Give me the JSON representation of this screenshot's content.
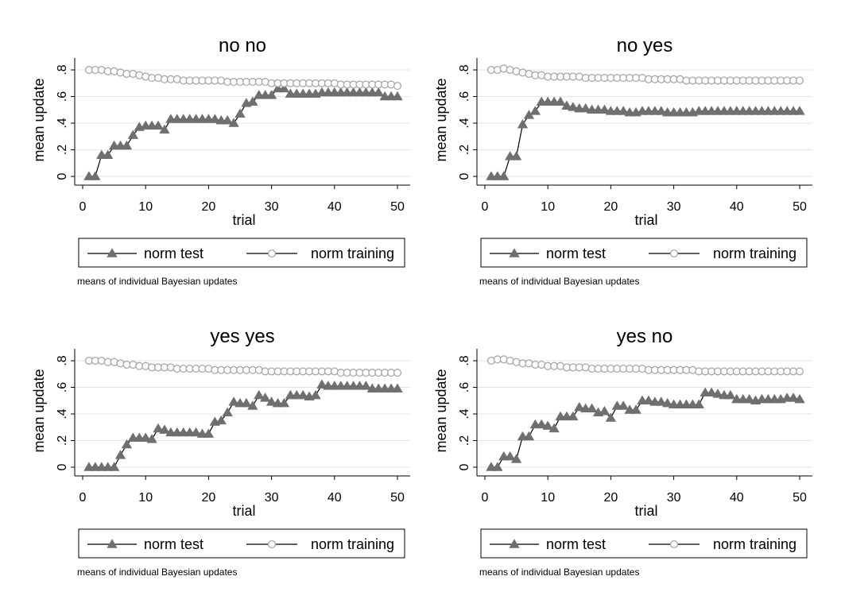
{
  "figure_note_text": "means of individual Bayesian updates",
  "colors": {
    "test_series": "#6f6f6f",
    "training_series": "#a6a6a6",
    "connect_line": "#000000",
    "grid": "#e4e4e4",
    "frame": "#000000"
  },
  "chart_data": [
    {
      "type": "line",
      "title": "no no",
      "xlabel": "trial",
      "ylabel": "mean update",
      "xlim": [
        0,
        50
      ],
      "ylim": [
        0,
        0.8
      ],
      "xticks": [
        0,
        10,
        20,
        30,
        40,
        50
      ],
      "yticks": [
        0,
        0.2,
        0.4,
        0.6,
        0.8
      ],
      "xtick_labels": [
        "0",
        "10",
        "20",
        "30",
        "40",
        "50"
      ],
      "ytick_labels": [
        "0",
        ".2",
        ".4",
        ".6",
        ".8"
      ],
      "grid": true,
      "legend_position": "bottom",
      "note": "means of individual Bayesian updates",
      "x": [
        1,
        2,
        3,
        4,
        5,
        6,
        7,
        8,
        9,
        10,
        11,
        12,
        13,
        14,
        15,
        16,
        17,
        18,
        19,
        20,
        21,
        22,
        23,
        24,
        25,
        26,
        27,
        28,
        29,
        30,
        31,
        32,
        33,
        34,
        35,
        36,
        37,
        38,
        39,
        40,
        41,
        42,
        43,
        44,
        45,
        46,
        47,
        48,
        49,
        50
      ],
      "series": [
        {
          "name": "norm test",
          "marker": "triangle",
          "values": [
            0,
            0,
            0.16,
            0.16,
            0.23,
            0.23,
            0.23,
            0.31,
            0.37,
            0.38,
            0.38,
            0.38,
            0.35,
            0.43,
            0.43,
            0.43,
            0.43,
            0.43,
            0.43,
            0.43,
            0.43,
            0.42,
            0.42,
            0.4,
            0.47,
            0.55,
            0.56,
            0.61,
            0.61,
            0.61,
            0.66,
            0.66,
            0.62,
            0.62,
            0.62,
            0.62,
            0.62,
            0.63,
            0.63,
            0.63,
            0.63,
            0.63,
            0.63,
            0.63,
            0.63,
            0.63,
            0.63,
            0.6,
            0.6,
            0.6
          ]
        },
        {
          "name": "norm training",
          "marker": "circle",
          "values": [
            0.8,
            0.8,
            0.8,
            0.79,
            0.79,
            0.78,
            0.77,
            0.77,
            0.76,
            0.75,
            0.74,
            0.74,
            0.73,
            0.73,
            0.73,
            0.72,
            0.72,
            0.72,
            0.72,
            0.72,
            0.72,
            0.72,
            0.71,
            0.71,
            0.71,
            0.71,
            0.71,
            0.71,
            0.71,
            0.7,
            0.7,
            0.7,
            0.7,
            0.7,
            0.7,
            0.7,
            0.7,
            0.7,
            0.7,
            0.7,
            0.69,
            0.69,
            0.69,
            0.69,
            0.69,
            0.69,
            0.69,
            0.69,
            0.69,
            0.68
          ]
        }
      ]
    },
    {
      "type": "line",
      "title": "no yes",
      "xlabel": "trial",
      "ylabel": "mean update",
      "xlim": [
        0,
        50
      ],
      "ylim": [
        0,
        0.8
      ],
      "xticks": [
        0,
        10,
        20,
        30,
        40,
        50
      ],
      "yticks": [
        0,
        0.2,
        0.4,
        0.6,
        0.8
      ],
      "xtick_labels": [
        "0",
        "10",
        "20",
        "30",
        "40",
        "50"
      ],
      "ytick_labels": [
        "0",
        ".2",
        ".4",
        ".6",
        ".8"
      ],
      "grid": true,
      "legend_position": "bottom",
      "note": "means of individual Bayesian updates",
      "x": [
        1,
        2,
        3,
        4,
        5,
        6,
        7,
        8,
        9,
        10,
        11,
        12,
        13,
        14,
        15,
        16,
        17,
        18,
        19,
        20,
        21,
        22,
        23,
        24,
        25,
        26,
        27,
        28,
        29,
        30,
        31,
        32,
        33,
        34,
        35,
        36,
        37,
        38,
        39,
        40,
        41,
        42,
        43,
        44,
        45,
        46,
        47,
        48,
        49,
        50
      ],
      "series": [
        {
          "name": "norm test",
          "marker": "triangle",
          "values": [
            0,
            0,
            0,
            0.15,
            0.15,
            0.39,
            0.46,
            0.49,
            0.56,
            0.56,
            0.56,
            0.56,
            0.53,
            0.52,
            0.51,
            0.51,
            0.5,
            0.5,
            0.5,
            0.49,
            0.49,
            0.49,
            0.48,
            0.48,
            0.49,
            0.49,
            0.49,
            0.49,
            0.48,
            0.48,
            0.48,
            0.48,
            0.48,
            0.49,
            0.49,
            0.49,
            0.49,
            0.49,
            0.49,
            0.49,
            0.49,
            0.49,
            0.49,
            0.49,
            0.49,
            0.49,
            0.49,
            0.49,
            0.49,
            0.49
          ]
        },
        {
          "name": "norm training",
          "marker": "circle",
          "values": [
            0.8,
            0.8,
            0.81,
            0.8,
            0.79,
            0.78,
            0.77,
            0.76,
            0.76,
            0.75,
            0.75,
            0.75,
            0.75,
            0.75,
            0.75,
            0.74,
            0.74,
            0.74,
            0.74,
            0.74,
            0.74,
            0.74,
            0.74,
            0.74,
            0.74,
            0.73,
            0.73,
            0.73,
            0.73,
            0.73,
            0.73,
            0.72,
            0.72,
            0.72,
            0.72,
            0.72,
            0.72,
            0.72,
            0.72,
            0.72,
            0.72,
            0.72,
            0.72,
            0.72,
            0.72,
            0.72,
            0.72,
            0.72,
            0.72,
            0.72
          ]
        }
      ]
    },
    {
      "type": "line",
      "title": "yes yes",
      "xlabel": "trial",
      "ylabel": "mean update",
      "xlim": [
        0,
        50
      ],
      "ylim": [
        0,
        0.8
      ],
      "xticks": [
        0,
        10,
        20,
        30,
        40,
        50
      ],
      "yticks": [
        0,
        0.2,
        0.4,
        0.6,
        0.8
      ],
      "xtick_labels": [
        "0",
        "10",
        "20",
        "30",
        "40",
        "50"
      ],
      "ytick_labels": [
        "0",
        ".2",
        ".4",
        ".6",
        ".8"
      ],
      "grid": true,
      "legend_position": "bottom",
      "note": "means of individual Bayesian updates",
      "x": [
        1,
        2,
        3,
        4,
        5,
        6,
        7,
        8,
        9,
        10,
        11,
        12,
        13,
        14,
        15,
        16,
        17,
        18,
        19,
        20,
        21,
        22,
        23,
        24,
        25,
        26,
        27,
        28,
        29,
        30,
        31,
        32,
        33,
        34,
        35,
        36,
        37,
        38,
        39,
        40,
        41,
        42,
        43,
        44,
        45,
        46,
        47,
        48,
        49,
        50
      ],
      "series": [
        {
          "name": "norm test",
          "marker": "triangle",
          "values": [
            0,
            0,
            0,
            0,
            0,
            0.09,
            0.17,
            0.22,
            0.22,
            0.22,
            0.21,
            0.29,
            0.28,
            0.26,
            0.26,
            0.26,
            0.26,
            0.26,
            0.25,
            0.25,
            0.34,
            0.35,
            0.41,
            0.49,
            0.48,
            0.48,
            0.46,
            0.54,
            0.52,
            0.49,
            0.48,
            0.48,
            0.54,
            0.54,
            0.54,
            0.53,
            0.54,
            0.62,
            0.61,
            0.61,
            0.61,
            0.61,
            0.61,
            0.61,
            0.61,
            0.59,
            0.59,
            0.59,
            0.59,
            0.59
          ]
        },
        {
          "name": "norm training",
          "marker": "circle",
          "values": [
            0.8,
            0.8,
            0.8,
            0.79,
            0.79,
            0.78,
            0.77,
            0.77,
            0.76,
            0.76,
            0.75,
            0.75,
            0.75,
            0.75,
            0.74,
            0.74,
            0.74,
            0.74,
            0.74,
            0.74,
            0.73,
            0.73,
            0.73,
            0.73,
            0.73,
            0.73,
            0.73,
            0.73,
            0.72,
            0.72,
            0.72,
            0.72,
            0.72,
            0.72,
            0.72,
            0.72,
            0.72,
            0.72,
            0.72,
            0.72,
            0.71,
            0.71,
            0.71,
            0.71,
            0.71,
            0.71,
            0.71,
            0.71,
            0.71,
            0.71
          ]
        }
      ]
    },
    {
      "type": "line",
      "title": "yes no",
      "xlabel": "trial",
      "ylabel": "mean update",
      "xlim": [
        0,
        50
      ],
      "ylim": [
        0,
        0.8
      ],
      "xticks": [
        0,
        10,
        20,
        30,
        40,
        50
      ],
      "yticks": [
        0,
        0.2,
        0.4,
        0.6,
        0.8
      ],
      "xtick_labels": [
        "0",
        "10",
        "20",
        "30",
        "40",
        "50"
      ],
      "ytick_labels": [
        "0",
        ".2",
        ".4",
        ".6",
        ".8"
      ],
      "grid": true,
      "legend_position": "bottom",
      "note": "means of individual Bayesian updates",
      "x": [
        1,
        2,
        3,
        4,
        5,
        6,
        7,
        8,
        9,
        10,
        11,
        12,
        13,
        14,
        15,
        16,
        17,
        18,
        19,
        20,
        21,
        22,
        23,
        24,
        25,
        26,
        27,
        28,
        29,
        30,
        31,
        32,
        33,
        34,
        35,
        36,
        37,
        38,
        39,
        40,
        41,
        42,
        43,
        44,
        45,
        46,
        47,
        48,
        49,
        50
      ],
      "series": [
        {
          "name": "norm test",
          "marker": "triangle",
          "values": [
            0,
            0,
            0.08,
            0.08,
            0.06,
            0.23,
            0.23,
            0.32,
            0.32,
            0.31,
            0.29,
            0.38,
            0.38,
            0.38,
            0.45,
            0.44,
            0.44,
            0.41,
            0.42,
            0.37,
            0.46,
            0.46,
            0.43,
            0.43,
            0.5,
            0.5,
            0.49,
            0.49,
            0.48,
            0.47,
            0.47,
            0.47,
            0.47,
            0.47,
            0.56,
            0.56,
            0.55,
            0.54,
            0.54,
            0.51,
            0.51,
            0.51,
            0.5,
            0.51,
            0.51,
            0.51,
            0.51,
            0.52,
            0.52,
            0.51
          ]
        },
        {
          "name": "norm training",
          "marker": "circle",
          "values": [
            0.8,
            0.81,
            0.81,
            0.8,
            0.79,
            0.78,
            0.78,
            0.77,
            0.77,
            0.76,
            0.76,
            0.76,
            0.75,
            0.75,
            0.75,
            0.75,
            0.74,
            0.74,
            0.74,
            0.74,
            0.74,
            0.74,
            0.74,
            0.74,
            0.74,
            0.73,
            0.73,
            0.73,
            0.73,
            0.73,
            0.73,
            0.73,
            0.73,
            0.72,
            0.72,
            0.72,
            0.72,
            0.72,
            0.72,
            0.72,
            0.72,
            0.72,
            0.72,
            0.72,
            0.72,
            0.72,
            0.72,
            0.72,
            0.72,
            0.72
          ]
        }
      ]
    }
  ]
}
